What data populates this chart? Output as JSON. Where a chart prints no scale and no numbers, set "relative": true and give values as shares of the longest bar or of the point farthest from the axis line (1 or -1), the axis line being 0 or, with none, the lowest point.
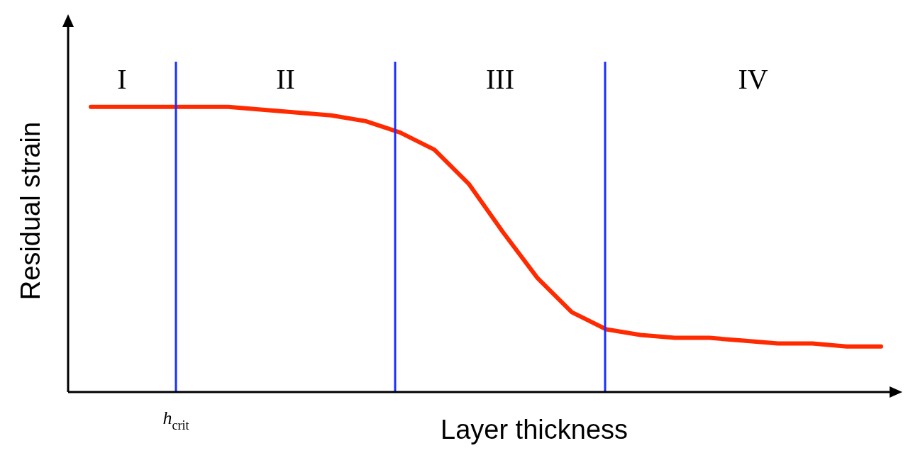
{
  "chart_data": {
    "type": "line",
    "relative": true,
    "xlabel": "Layer thickness",
    "ylabel": "Residual strain",
    "categories": [
      null,
      null,
      null,
      null,
      null,
      null,
      null,
      null,
      null,
      null,
      null,
      null,
      null,
      null,
      null,
      null,
      null,
      null,
      null,
      null,
      null,
      null,
      null,
      null
    ],
    "series": [
      {
        "color": "#ff2a00",
        "values": [
          1.0,
          1.0,
          1.0,
          1.0,
          1.0,
          0.99,
          0.98,
          0.97,
          0.95,
          0.91,
          0.85,
          0.73,
          0.56,
          0.4,
          0.28,
          0.22,
          0.2,
          0.19,
          0.19,
          0.18,
          0.17,
          0.17,
          0.16,
          0.16
        ]
      }
    ],
    "legend": false,
    "marker": "none",
    "line_style": "solid",
    "annotations": [
      "I",
      "II",
      "III",
      "IV",
      "h$_{crit}$"
    ]
  }
}
